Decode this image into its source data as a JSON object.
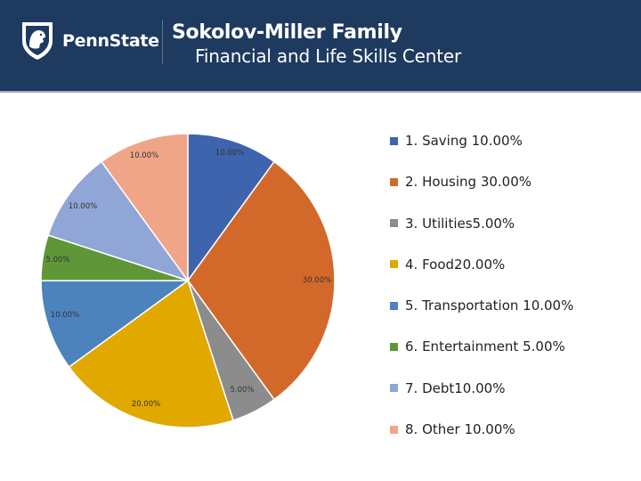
{
  "header": {
    "logo_text": "PennState",
    "title": "Sokolov-Miller Family",
    "subtitle": "Financial and Life Skills Center"
  },
  "chart_data": {
    "type": "pie",
    "title": "",
    "slices": [
      {
        "label": "1.  Saving 10.00%",
        "value": 10,
        "data_label": "10.00%",
        "color": "#3e64ad"
      },
      {
        "label": "2.  Housing 30.00%",
        "value": 30,
        "data_label": "30.00%",
        "color": "#d2692b"
      },
      {
        "label": "3.  Utilities5.00%",
        "value": 5,
        "data_label": "5.00%",
        "color": "#8c8c8c"
      },
      {
        "label": "4.  Food20.00%",
        "value": 20,
        "data_label": "20.00%",
        "color": "#e1a800"
      },
      {
        "label": "5.  Transportation 10.00%",
        "value": 10,
        "data_label": "10.00%",
        "color": "#4d83bd"
      },
      {
        "label": "6.  Entertainment 5.00%",
        "value": 5,
        "data_label": "5.00%",
        "color": "#5f9638"
      },
      {
        "label": "7.  Debt10.00%",
        "value": 10,
        "data_label": "10.00%",
        "color": "#90a6d6"
      },
      {
        "label": "8.  Other 10.00%",
        "value": 10,
        "data_label": "10.00%",
        "color": "#f0a588"
      }
    ],
    "legend_position": "right"
  }
}
